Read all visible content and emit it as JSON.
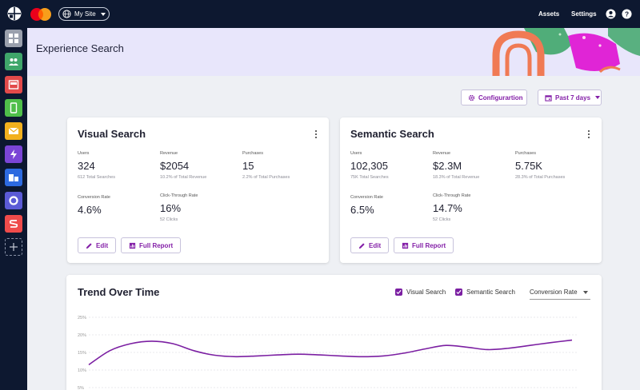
{
  "topbar": {
    "site_label": "My Site",
    "assets_label": "Assets",
    "settings_label": "Settings",
    "profile_icon": "user-circle-icon",
    "help_icon": "help-circle-icon"
  },
  "sidebar": {
    "apps": [
      {
        "name": "dashboard-app",
        "color": "#9aa0ad",
        "icon": "grid-icon"
      },
      {
        "name": "audience-app",
        "color": "#3fa66a",
        "icon": "people-icon"
      },
      {
        "name": "layout-app",
        "color": "#e24a4a",
        "icon": "layout-icon"
      },
      {
        "name": "mobile-app",
        "color": "#4fbf4a",
        "icon": "phone-icon"
      },
      {
        "name": "email-app",
        "color": "#f2b01e",
        "icon": "mail-icon"
      },
      {
        "name": "lightning-app",
        "color": "#7b45d6",
        "icon": "lightning-icon"
      },
      {
        "name": "blocks-app",
        "color": "#2d6ae0",
        "icon": "blocks-icon"
      },
      {
        "name": "loop-app",
        "color": "#5b5bd6",
        "icon": "ring-icon"
      },
      {
        "name": "stack-app",
        "color": "#ef4b4b",
        "icon": "s-icon"
      }
    ]
  },
  "banner": {
    "title": "Experience Search"
  },
  "controls": {
    "config_label": "Configurartion",
    "range_label": "Past 7 days"
  },
  "visual_card": {
    "title": "Visual Search",
    "users": {
      "label": "Users",
      "value": "324",
      "sub": "612 Total Searches"
    },
    "revenue": {
      "label": "Revenue",
      "value": "$2054",
      "sub": "10.2% of Total Revenue"
    },
    "purchases": {
      "label": "Purchases",
      "value": "15",
      "sub": "2.2% of Total Purchases"
    },
    "conversion": {
      "label": "Conversion Rate",
      "value": "4.6%"
    },
    "ctr": {
      "label": "Click-Through Rate",
      "value": "16%",
      "sub": "52 Clicks"
    },
    "edit_label": "Edit",
    "report_label": "Full Report"
  },
  "semantic_card": {
    "title": "Semantic Search",
    "users": {
      "label": "Users",
      "value": "102,305",
      "sub": "75K Total Searches"
    },
    "revenue": {
      "label": "Revenue",
      "value": "$2.3M",
      "sub": "18.3% of Total Revenue"
    },
    "purchases": {
      "label": "Purchases",
      "value": "5.75K",
      "sub": "28.3% of Total Purchases"
    },
    "conversion": {
      "label": "Conversion Rate",
      "value": "6.5%"
    },
    "ctr": {
      "label": "Click-Through Rate",
      "value": "14.7%",
      "sub": "52 Clicks"
    },
    "edit_label": "Edit",
    "report_label": "Full Report"
  },
  "trend": {
    "title": "Trend Over Time",
    "legend_visual": "Visual Search",
    "legend_semantic": "Semantic Search",
    "metric_select": "Conversion Rate"
  },
  "chart_data": {
    "type": "line",
    "title": "Trend Over Time",
    "yticks": [
      "25%",
      "20%",
      "15%",
      "10%",
      "5%"
    ],
    "ylim": [
      5,
      25
    ],
    "grid": true,
    "series": [
      {
        "name": "",
        "color": "#7b1fa2",
        "values": [
          11.5,
          15.5,
          17.5,
          18.2,
          17.5,
          15.5,
          14.2,
          13.8,
          14.0,
          14.3,
          14.5,
          14.3,
          14.0,
          13.8,
          14.0,
          14.8,
          16.0,
          17.0,
          16.5,
          15.8,
          16.2,
          17.0,
          17.8,
          18.5
        ]
      }
    ]
  }
}
